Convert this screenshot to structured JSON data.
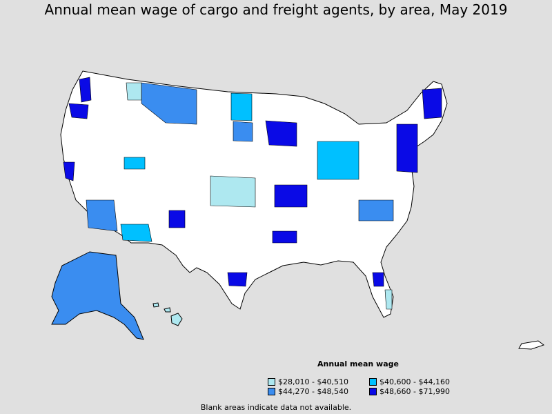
{
  "title": "Annual mean wage of cargo and freight agents, by area, May 2019",
  "legend": {
    "title": "Annual mean wage",
    "items": [
      {
        "label": "$28,010 - $40,510",
        "color": "#aee8f0"
      },
      {
        "label": "$40,600 - $44,160",
        "color": "#00c0ff"
      },
      {
        "label": "$44,270 - $48,540",
        "color": "#3a8df0"
      },
      {
        "label": "$48,660 - $71,990",
        "color": "#0a0ae6"
      }
    ]
  },
  "note": "Blank areas indicate data not available.",
  "colors": {
    "background": "#e0e0e0",
    "land": "#ffffff",
    "border": "#000000",
    "bin1": "#aee8f0",
    "bin2": "#00c0ff",
    "bin3": "#3a8df0",
    "bin4": "#0a0ae6"
  }
}
